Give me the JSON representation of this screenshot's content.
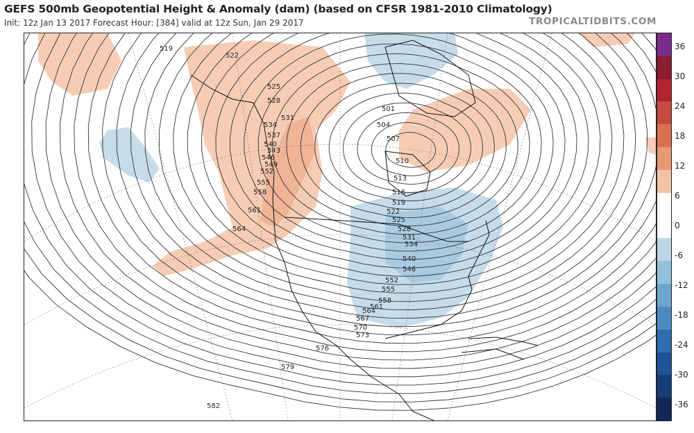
{
  "header": {
    "title": "GEFS 500mb Geopotential Height & Anomaly (dam) (based on CFSR 1981-2010 Climatology)",
    "subtitle": "Init: 12z Jan 13 2017   Forecast Hour: [384]   valid at 12z Sun, Jan 29 2017",
    "brand": "TROPICALTIDBITS.COM"
  },
  "colorbar": {
    "labels": [
      "36",
      "30",
      "24",
      "18",
      "12",
      "6",
      "0",
      "-6",
      "-12",
      "-18",
      "-24",
      "-30",
      "-36"
    ],
    "colors": [
      "#7b2a8e",
      "#8c1c30",
      "#b3242f",
      "#c64a3f",
      "#d9714f",
      "#e69a74",
      "#f2c3a6",
      "#ffffff",
      "#ffffff",
      "#bcd6e6",
      "#93c0dd",
      "#6fa6cf",
      "#4b8bc0",
      "#2f6eae",
      "#1e5497",
      "#173d79",
      "#12285a"
    ]
  },
  "contour_labels": {
    "pacific_north": [
      "519",
      "522",
      "525",
      "528",
      "531",
      "534",
      "537",
      "540",
      "543",
      "546",
      "549",
      "552",
      "555",
      "558",
      "561",
      "564"
    ],
    "canada_east": [
      "501",
      "504",
      "507",
      "510",
      "513",
      "516",
      "519",
      "522",
      "525",
      "528",
      "531",
      "534",
      "540",
      "546",
      "552",
      "555",
      "558",
      "561",
      "564",
      "567",
      "570"
    ],
    "south": [
      "573",
      "576",
      "579",
      "582"
    ]
  }
}
